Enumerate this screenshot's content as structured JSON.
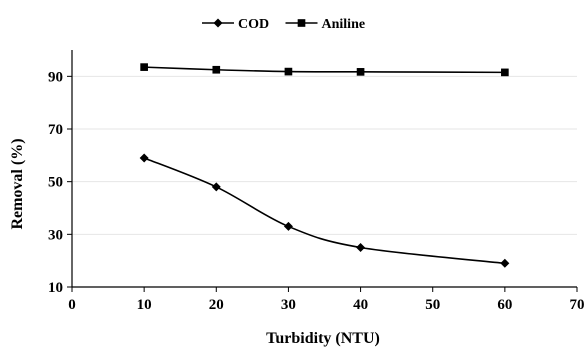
{
  "chart_data": {
    "type": "line",
    "title": "",
    "xlabel": "Turbidity (NTU)",
    "ylabel": "Removal (%)",
    "xlim": [
      0,
      70
    ],
    "ylim": [
      10,
      100
    ],
    "xticks": [
      "0",
      "10",
      "20",
      "30",
      "40",
      "50",
      "60",
      "70"
    ],
    "yticks": [
      "10",
      "30",
      "50",
      "70",
      "90"
    ],
    "grid": "horizontal",
    "legend_position": "top-center",
    "series": [
      {
        "name": "COD",
        "marker": "diamond",
        "color": "#000000",
        "x": [
          10,
          20,
          30,
          40,
          60
        ],
        "y": [
          59,
          48,
          33,
          25,
          19
        ]
      },
      {
        "name": "Aniline",
        "marker": "square",
        "color": "#000000",
        "x": [
          10,
          20,
          30,
          40,
          60
        ],
        "y": [
          93.5,
          92.5,
          91.8,
          91.7,
          91.5
        ]
      }
    ]
  }
}
